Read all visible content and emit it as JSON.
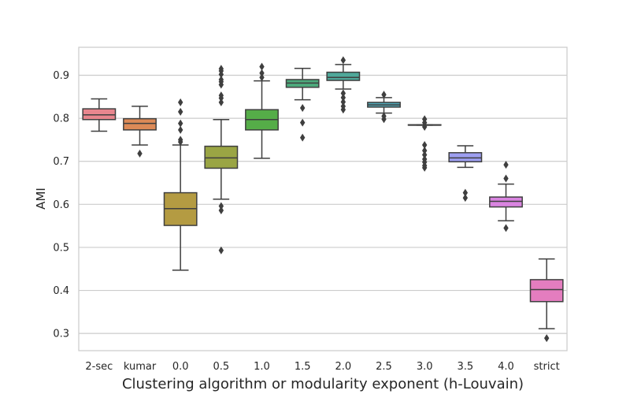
{
  "chart_data": {
    "type": "boxplot",
    "title": "",
    "xlabel": "Clustering algorithm or modularity exponent (h-Louvain)",
    "ylabel": "AMI",
    "ylim": [
      0.26,
      0.965
    ],
    "yticks": [
      0.3,
      0.4,
      0.5,
      0.6,
      0.7,
      0.8,
      0.9
    ],
    "grid": "horizontal",
    "categories": [
      "2-sec",
      "kumar",
      "0.0",
      "0.5",
      "1.0",
      "1.5",
      "2.0",
      "2.5",
      "3.0",
      "3.5",
      "4.0",
      "strict"
    ],
    "boxes": [
      {
        "label": "2-sec",
        "color": "#e8868e",
        "whisker_low": 0.77,
        "q1": 0.797,
        "median": 0.808,
        "q3": 0.822,
        "whisker_high": 0.845,
        "outliers": []
      },
      {
        "label": "kumar",
        "color": "#dd8a57",
        "whisker_low": 0.738,
        "q1": 0.773,
        "median": 0.788,
        "q3": 0.799,
        "whisker_high": 0.828,
        "outliers": [
          0.718
        ]
      },
      {
        "label": "0.0",
        "color": "#b49b42",
        "whisker_low": 0.447,
        "q1": 0.551,
        "median": 0.59,
        "q3": 0.627,
        "whisker_high": 0.738,
        "outliers": [
          0.745,
          0.75,
          0.773,
          0.788,
          0.815,
          0.837
        ]
      },
      {
        "label": "0.5",
        "color": "#9aa544",
        "whisker_low": 0.612,
        "q1": 0.684,
        "median": 0.708,
        "q3": 0.735,
        "whisker_high": 0.797,
        "outliers": [
          0.493,
          0.586,
          0.596,
          0.837,
          0.847,
          0.853,
          0.878,
          0.885,
          0.89,
          0.902,
          0.91,
          0.915
        ]
      },
      {
        "label": "1.0",
        "color": "#55ad48",
        "whisker_low": 0.707,
        "q1": 0.773,
        "median": 0.797,
        "q3": 0.82,
        "whisker_high": 0.887,
        "outliers": [
          0.895,
          0.905,
          0.92
        ]
      },
      {
        "label": "1.5",
        "color": "#4daa7c",
        "whisker_low": 0.843,
        "q1": 0.872,
        "median": 0.882,
        "q3": 0.89,
        "whisker_high": 0.916,
        "outliers": [
          0.755,
          0.79,
          0.824
        ]
      },
      {
        "label": "2.0",
        "color": "#4fa89a",
        "whisker_low": 0.868,
        "q1": 0.888,
        "median": 0.895,
        "q3": 0.907,
        "whisker_high": 0.925,
        "outliers": [
          0.82,
          0.828,
          0.838,
          0.848,
          0.858,
          0.935
        ]
      },
      {
        "label": "2.5",
        "color": "#50a6b4",
        "whisker_low": 0.812,
        "q1": 0.826,
        "median": 0.831,
        "q3": 0.837,
        "whisker_high": 0.848,
        "outliers": [
          0.798,
          0.805,
          0.855
        ]
      },
      {
        "label": "3.0",
        "color": "#5ba2cc",
        "whisker_low": 0.784,
        "q1": 0.784,
        "median": 0.784,
        "q3": 0.785,
        "whisker_high": 0.785,
        "outliers": [
          0.685,
          0.69,
          0.698,
          0.705,
          0.715,
          0.725,
          0.738,
          0.78,
          0.79,
          0.798
        ]
      },
      {
        "label": "3.5",
        "color": "#9d9ef0",
        "whisker_low": 0.686,
        "q1": 0.699,
        "median": 0.708,
        "q3": 0.72,
        "whisker_high": 0.736,
        "outliers": [
          0.615,
          0.627
        ]
      },
      {
        "label": "4.0",
        "color": "#d984e0",
        "whisker_low": 0.562,
        "q1": 0.594,
        "median": 0.607,
        "q3": 0.617,
        "whisker_high": 0.647,
        "outliers": [
          0.545,
          0.66,
          0.692
        ]
      },
      {
        "label": "strict",
        "color": "#e47dbf",
        "whisker_low": 0.311,
        "q1": 0.374,
        "median": 0.402,
        "q3": 0.425,
        "whisker_high": 0.473,
        "outliers": [
          0.289
        ]
      }
    ]
  }
}
